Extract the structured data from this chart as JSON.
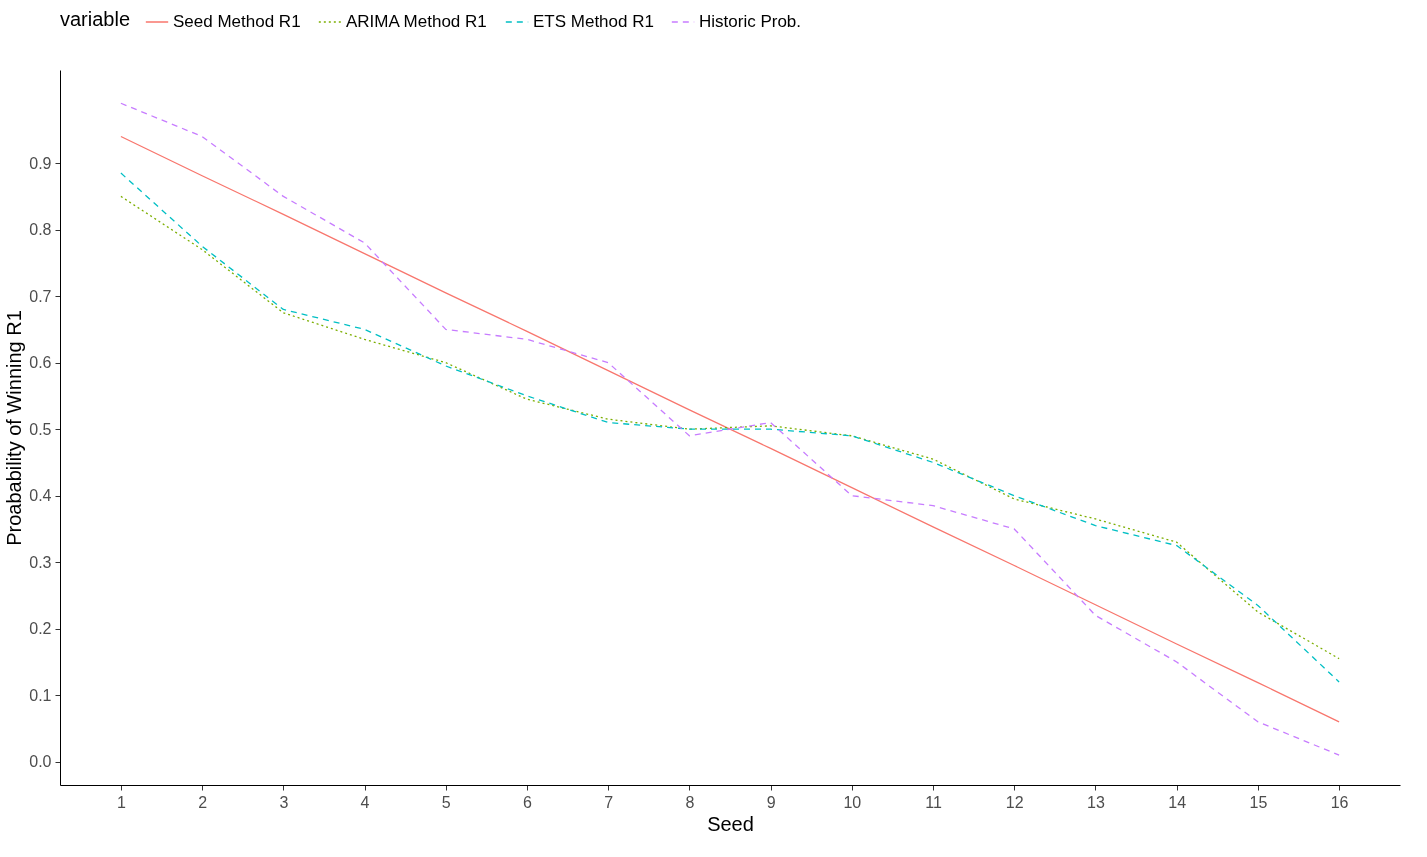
{
  "chart_data": {
    "type": "line",
    "xlabel": "Seed",
    "ylabel": "Proabability of Winning R1",
    "legend_title": "variable",
    "legend": "top",
    "grid": false,
    "x": [
      1,
      2,
      3,
      4,
      5,
      6,
      7,
      8,
      9,
      10,
      11,
      12,
      13,
      14,
      15,
      16
    ],
    "xlim": [
      0.25,
      16.75
    ],
    "xticks": [
      1,
      2,
      3,
      4,
      5,
      6,
      7,
      8,
      9,
      10,
      11,
      12,
      13,
      14,
      15,
      16
    ],
    "ylim": [
      -0.035,
      1.04
    ],
    "yticks": [
      {
        "value": 0,
        "label": "0.0"
      },
      0.1,
      0.2,
      0.3,
      0.4,
      0.5,
      0.6,
      0.7,
      0.8,
      0.9
    ],
    "series": [
      {
        "name": "Seed Method R1",
        "color": "#f8766d",
        "line_style": "solid",
        "values": [
          0.94,
          0.881,
          0.823,
          0.764,
          0.705,
          0.647,
          0.588,
          0.529,
          0.471,
          0.412,
          0.353,
          0.295,
          0.236,
          0.177,
          0.119,
          0.06
        ]
      },
      {
        "name": "ARIMA Method R1",
        "color": "#7cae00",
        "line_style": "dotted",
        "values": [
          0.85,
          0.77,
          0.675,
          0.635,
          0.6,
          0.545,
          0.515,
          0.5,
          0.505,
          0.49,
          0.455,
          0.395,
          0.365,
          0.33,
          0.225,
          0.155
        ]
      },
      {
        "name": "ETS Method R1",
        "color": "#00bfc4",
        "line_style": "dashed",
        "values": [
          0.885,
          0.775,
          0.68,
          0.65,
          0.595,
          0.55,
          0.51,
          0.5,
          0.5,
          0.49,
          0.45,
          0.4,
          0.355,
          0.325,
          0.235,
          0.12
        ]
      },
      {
        "name": "Historic Prob.",
        "color": "#c77cff",
        "line_style": "dashed",
        "values": [
          0.99,
          0.94,
          0.85,
          0.78,
          0.65,
          0.635,
          0.6,
          0.49,
          0.51,
          0.4,
          0.385,
          0.35,
          0.22,
          0.15,
          0.06,
          0.01
        ]
      }
    ]
  }
}
